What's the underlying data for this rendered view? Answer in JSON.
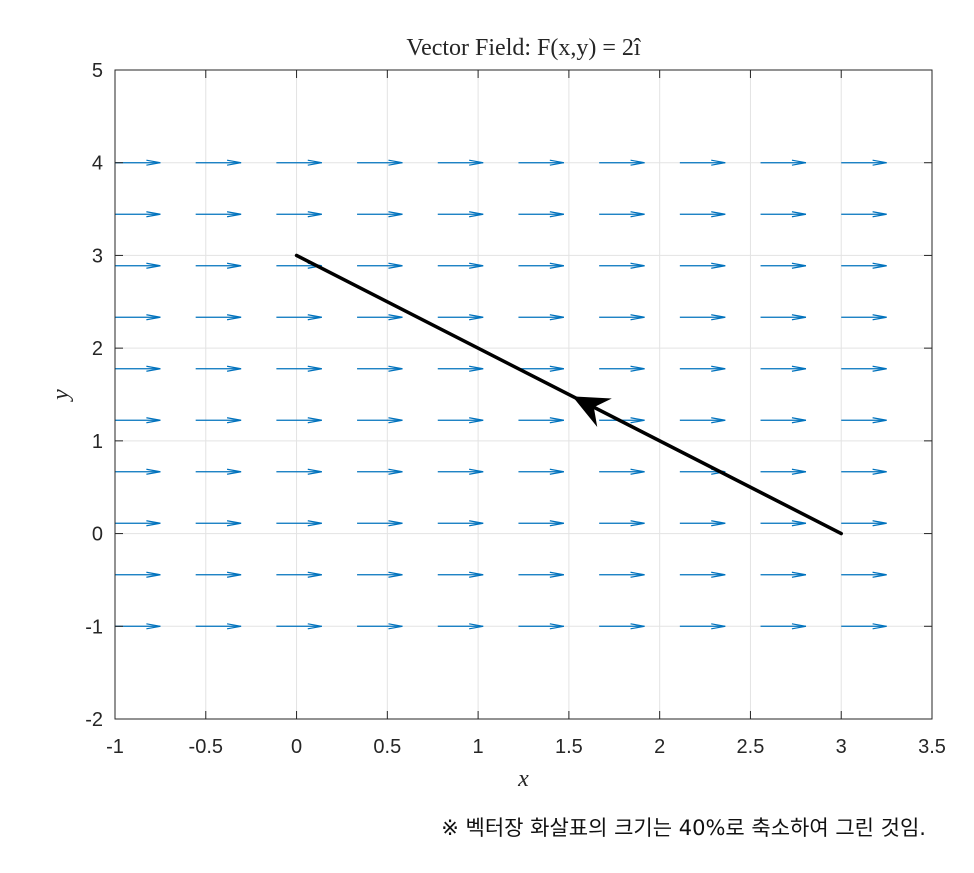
{
  "chart_data": {
    "type": "quiver",
    "title": "Vector Field: F(x,y) = 2î",
    "xlabel": "x",
    "ylabel": "y",
    "xlim": [
      -1,
      3.5
    ],
    "ylim": [
      -2,
      5
    ],
    "xticks": [
      -1,
      -0.5,
      0,
      0.5,
      1,
      1.5,
      2,
      2.5,
      3,
      3.5
    ],
    "xtick_labels": [
      "-1",
      "-0.5",
      "0",
      "0.5",
      "1",
      "1.5",
      "2",
      "2.5",
      "3",
      "3.5"
    ],
    "yticks": [
      -2,
      -1,
      0,
      1,
      2,
      3,
      4,
      5
    ],
    "ytick_labels": [
      "-2",
      "-1",
      "0",
      "1",
      "2",
      "3",
      "4",
      "5"
    ],
    "grid": true,
    "field": {
      "vector": [
        2,
        0
      ],
      "x": [
        -1,
        -0.5556,
        -0.1111,
        0.3333,
        0.7778,
        1.2222,
        1.6667,
        2.1111,
        2.5556,
        3.0
      ],
      "y": [
        -1.0,
        -0.4444,
        0.1111,
        0.6667,
        1.2222,
        1.7778,
        2.3333,
        2.8889,
        3.4444,
        4.0
      ],
      "arrow_scale": 0.4,
      "color": "#0072BD"
    },
    "path": {
      "start": [
        3,
        0
      ],
      "end": [
        0,
        3
      ],
      "arrow_at": [
        1.5,
        1.5
      ],
      "color": "#000000"
    }
  },
  "footnote": "※ 벡터장 화살표의 크기는 40%로 축소하여 그린 것임."
}
